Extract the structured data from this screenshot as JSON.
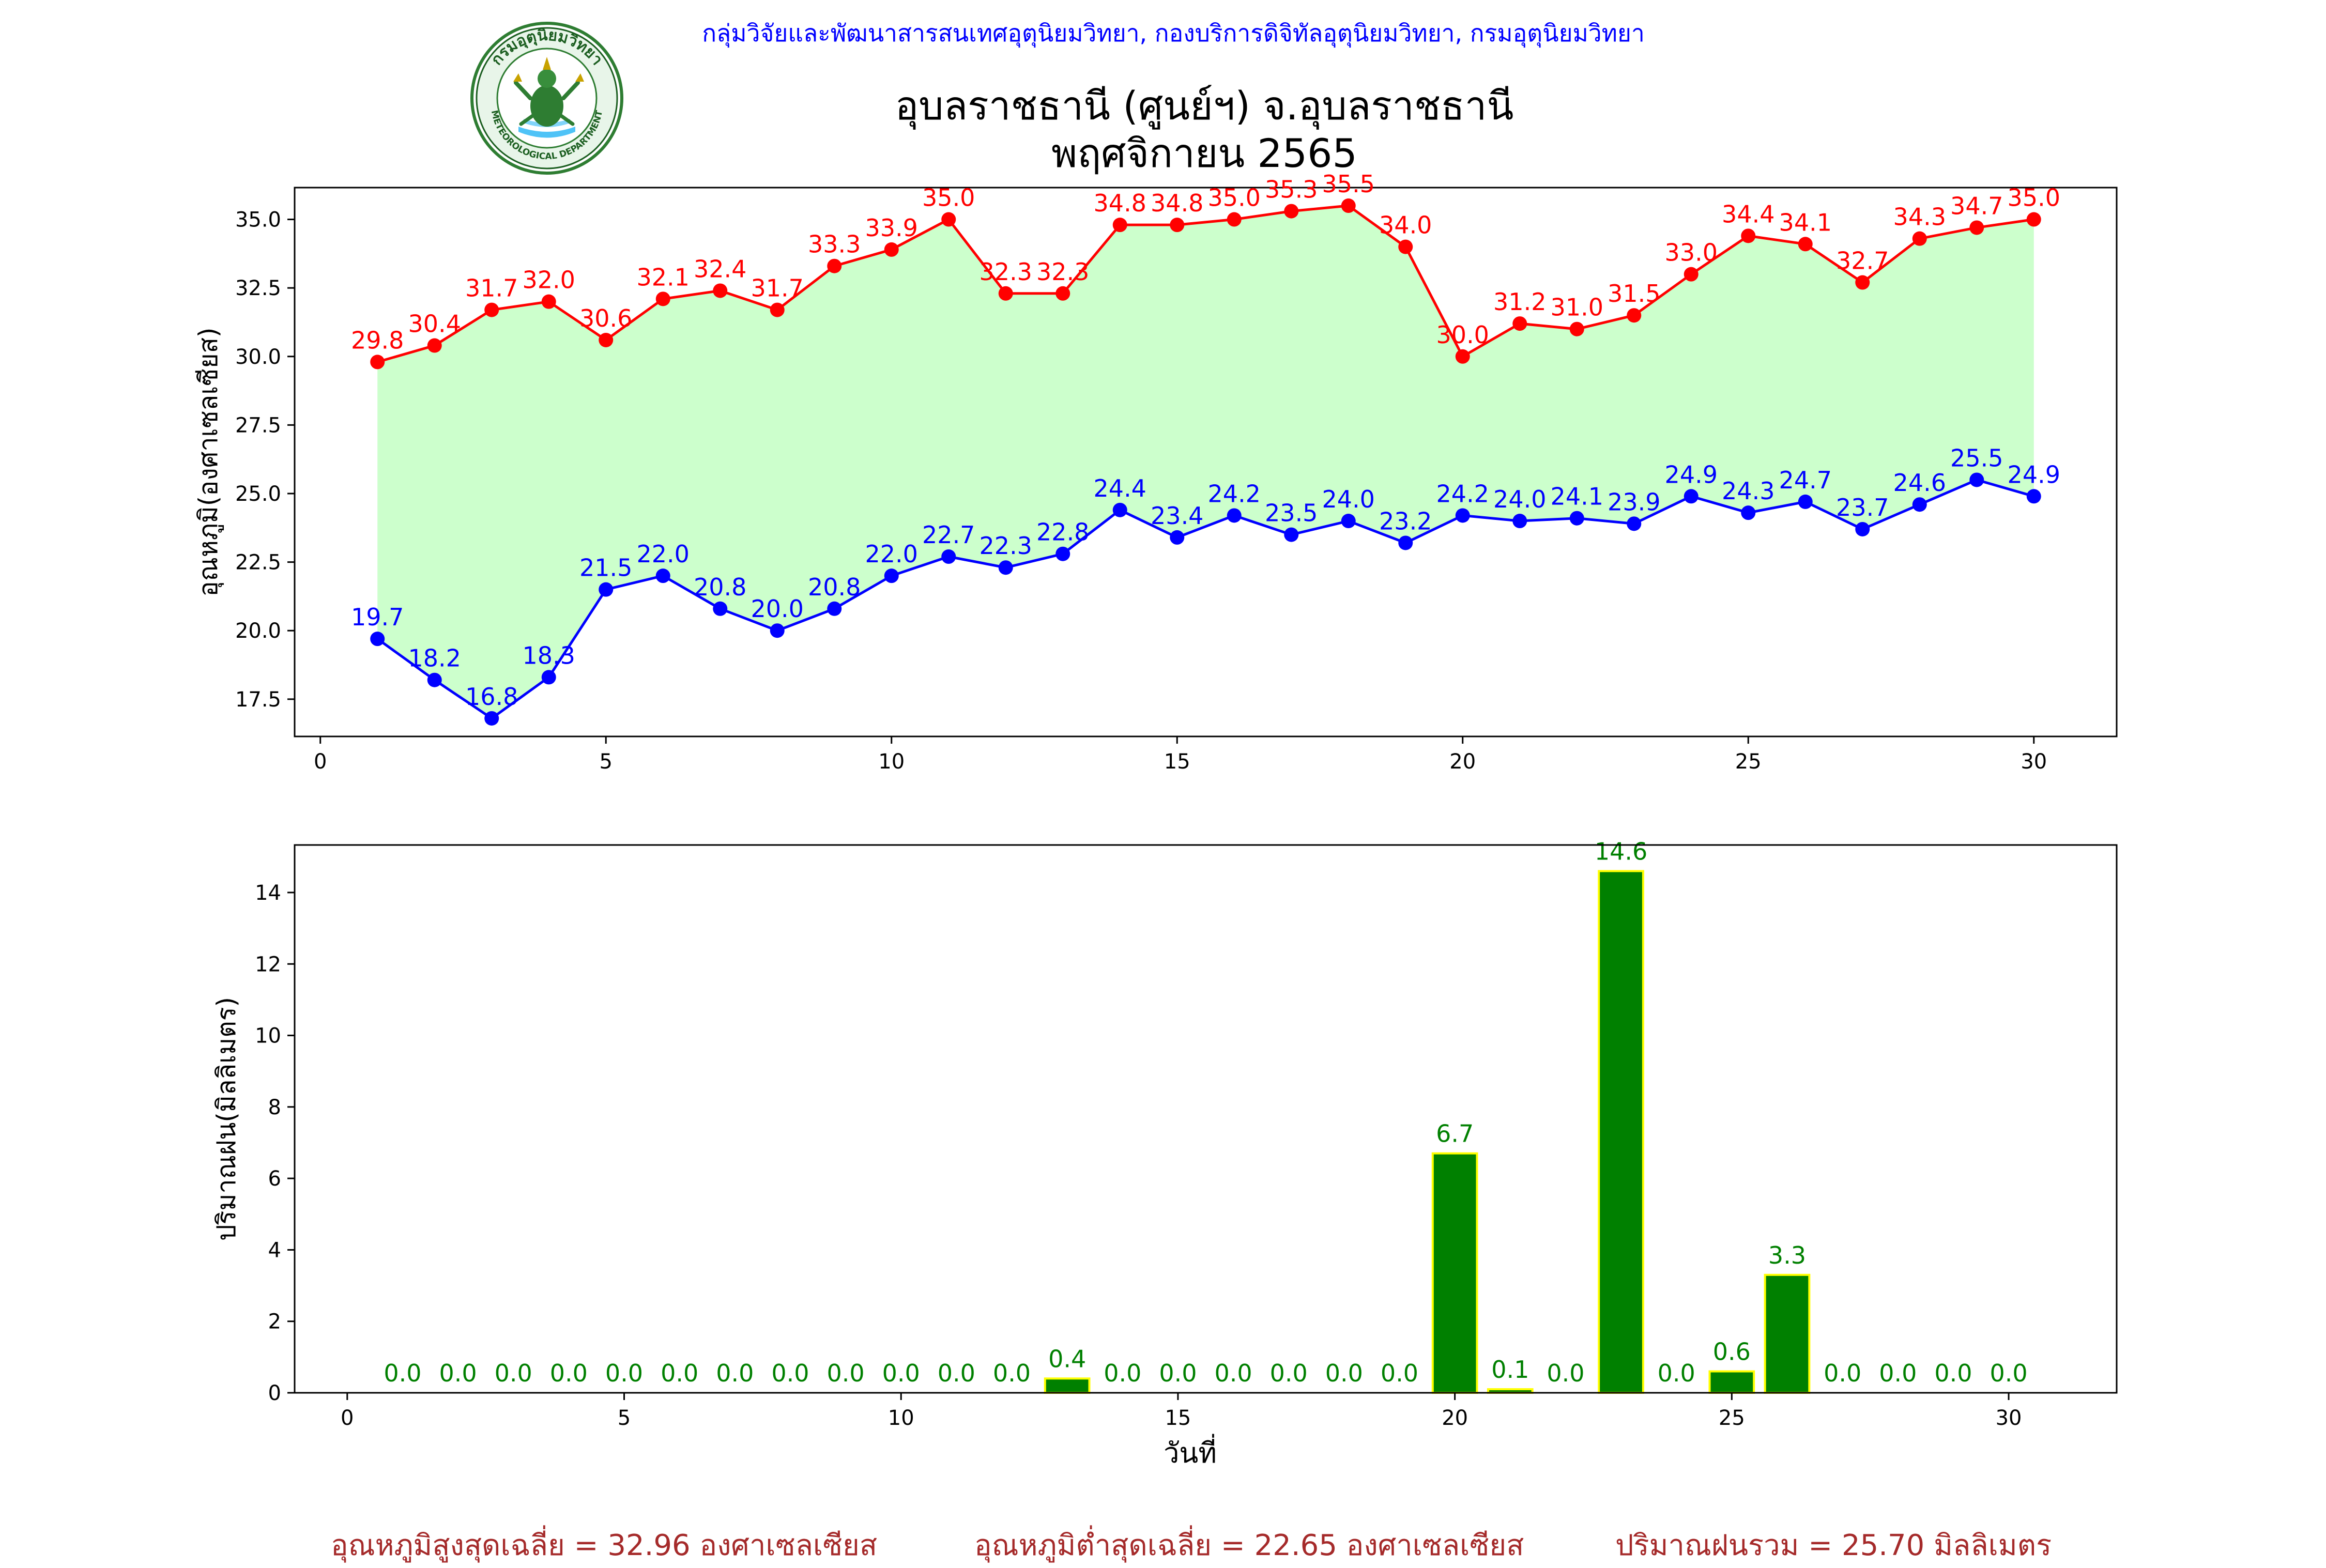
{
  "header": {
    "agency": "กลุ่มวิจัยและพัฒนาสารสนเทศอุตุนิยมวิทยา, กองบริการดิจิทัลอุตุนิยมวิทยา, กรมอุตุนิยมวิทยา",
    "title_line1": "อุบลราชธานี (ศูนย์ฯ) จ.อุบลราชธานี",
    "title_line2": "พฤศจิกายน 2565",
    "logo": {
      "top_text": "กรมอุตุนิยมวิทยา",
      "bottom_text": "METEOROLOGICAL DEPARTMENT",
      "icon": "meteorological-department-seal"
    }
  },
  "colors": {
    "max": "#ff0000",
    "min": "#0000ff",
    "fill": "#ccffcc",
    "rain_bar": "#008000",
    "rain_edge": "#ffff00",
    "rain_label": "#008000",
    "footer": "#a52a2a",
    "agency": "#0000ff"
  },
  "chart_data": [
    {
      "type": "line",
      "ylabel": "อุณหภูมิ(องศาเซลเซียส)",
      "xlabel": "",
      "x": [
        1,
        2,
        3,
        4,
        5,
        6,
        7,
        8,
        9,
        10,
        11,
        12,
        13,
        14,
        15,
        16,
        17,
        18,
        19,
        20,
        21,
        22,
        23,
        24,
        25,
        26,
        27,
        28,
        29,
        30
      ],
      "xlim": [
        -0.45,
        31.45
      ],
      "ylim": [
        16.14,
        36.16
      ],
      "xticks": [
        0,
        5,
        10,
        15,
        20,
        25,
        30
      ],
      "yticks": [
        17.5,
        20.0,
        22.5,
        25.0,
        27.5,
        30.0,
        32.5,
        35.0
      ],
      "series": [
        {
          "key": "max",
          "values": [
            29.8,
            30.4,
            31.7,
            32.0,
            30.6,
            32.1,
            32.4,
            31.7,
            33.3,
            33.9,
            35.0,
            32.3,
            32.3,
            34.8,
            34.8,
            35.0,
            35.3,
            35.5,
            34.0,
            30.0,
            31.2,
            31.0,
            31.5,
            33.0,
            34.4,
            34.1,
            32.7,
            34.3,
            34.7,
            35.0
          ]
        },
        {
          "key": "min",
          "values": [
            19.7,
            18.2,
            16.8,
            18.3,
            21.5,
            22.0,
            20.8,
            20.0,
            20.8,
            22.0,
            22.7,
            22.3,
            22.8,
            24.4,
            23.4,
            24.2,
            23.5,
            24.0,
            23.2,
            24.2,
            24.0,
            24.1,
            23.9,
            24.9,
            24.3,
            24.7,
            23.7,
            24.6,
            25.5,
            24.9
          ]
        }
      ],
      "fill_between": true,
      "grid": false
    },
    {
      "type": "bar",
      "ylabel": "ปริมาณฝน(มิลลิเมตร)",
      "xlabel": "วันที่",
      "x": [
        1,
        2,
        3,
        4,
        5,
        6,
        7,
        8,
        9,
        10,
        11,
        12,
        13,
        14,
        15,
        16,
        17,
        18,
        19,
        20,
        21,
        22,
        23,
        24,
        25,
        26,
        27,
        28,
        29,
        30
      ],
      "xlim": [
        -0.95,
        31.95
      ],
      "ylim": [
        0,
        15.33
      ],
      "xticks": [
        0,
        5,
        10,
        15,
        20,
        25,
        30
      ],
      "yticks": [
        0,
        2,
        4,
        6,
        8,
        10,
        12,
        14
      ],
      "values": [
        0.0,
        0.0,
        0.0,
        0.0,
        0.0,
        0.0,
        0.0,
        0.0,
        0.0,
        0.0,
        0.0,
        0.0,
        0.4,
        0.0,
        0.0,
        0.0,
        0.0,
        0.0,
        0.0,
        6.7,
        0.1,
        0.0,
        14.6,
        0.0,
        0.6,
        3.3,
        0.0,
        0.0,
        0.0,
        0.0
      ],
      "grid": false
    }
  ],
  "footer": {
    "avg_max": "อุณหภูมิสูงสุดเฉลี่ย = 32.96 องศาเซลเซียส",
    "avg_min": "อุณหภูมิต่ำสุดเฉลี่ย = 22.65 องศาเซลเซียส",
    "total_rain": "ปริมาณฝนรวม = 25.70 มิลลิเมตร"
  }
}
